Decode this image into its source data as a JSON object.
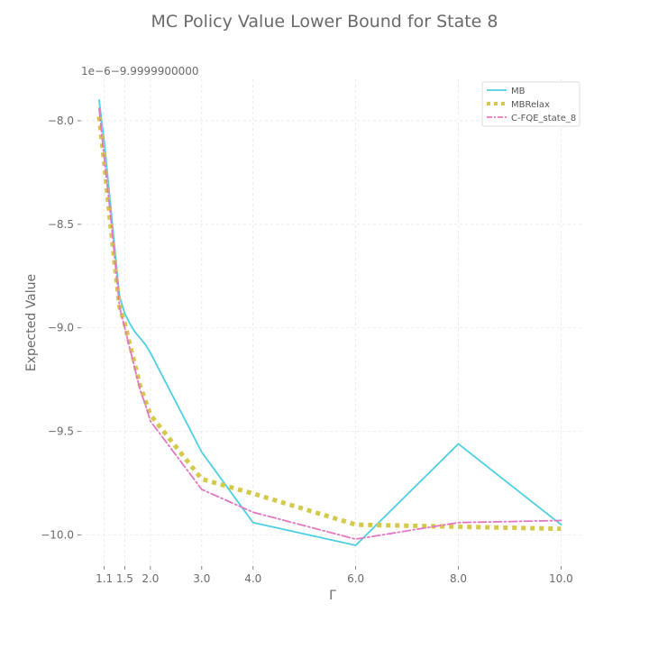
{
  "chart_data": {
    "type": "line",
    "title": "MC Policy Value Lower Bound for State 8",
    "xlabel": "Γ",
    "ylabel": "Expected Value",
    "y_offset_text": "1e−6−9.9999900000",
    "xlim": [
      0.65,
      10.45
    ],
    "ylim": [
      -10.15,
      -7.8
    ],
    "x_ticks": [
      1.1,
      1.5,
      2.0,
      3.0,
      4.0,
      6.0,
      8.0,
      10.0
    ],
    "x_tick_labels": [
      "1.1",
      "1.5",
      "2.0",
      "3.0",
      "4.0",
      "6.0",
      "8.0",
      "10.0"
    ],
    "y_ticks": [
      -8.0,
      -8.5,
      -9.0,
      -9.5,
      -10.0
    ],
    "y_tick_labels": [
      "−8.0",
      "−8.5",
      "−9.0",
      "−9.5",
      "−10.0"
    ],
    "grid": true,
    "legend_position": "top-right",
    "series": [
      {
        "name": "MB",
        "color": "#4dd0e1",
        "style": "solid",
        "x": [
          1.0,
          1.1,
          1.2,
          1.3,
          1.4,
          1.5,
          1.6,
          1.7,
          1.8,
          1.9,
          2.0,
          3.0,
          4.0,
          6.0,
          8.0,
          10.0
        ],
        "y": [
          -7.9,
          -8.1,
          -8.35,
          -8.6,
          -8.85,
          -8.93,
          -8.98,
          -9.02,
          -9.05,
          -9.08,
          -9.12,
          -9.6,
          -9.94,
          -10.05,
          -9.56,
          -9.95
        ]
      },
      {
        "name": "MBRelax",
        "color": "#d4c94a",
        "style": "dotted",
        "x": [
          1.0,
          1.1,
          1.2,
          1.3,
          1.4,
          1.5,
          1.6,
          1.7,
          1.8,
          1.9,
          2.0,
          3.0,
          4.0,
          6.0,
          8.0,
          10.0
        ],
        "y": [
          -7.98,
          -8.2,
          -8.45,
          -8.68,
          -8.9,
          -8.98,
          -9.08,
          -9.18,
          -9.28,
          -9.35,
          -9.42,
          -9.73,
          -9.8,
          -9.95,
          -9.96,
          -9.97
        ]
      },
      {
        "name": "C-FQE_state_8",
        "color": "#e377c2",
        "style": "dashdot",
        "x": [
          1.0,
          1.1,
          1.2,
          1.3,
          1.4,
          1.5,
          1.6,
          1.7,
          1.8,
          1.9,
          2.0,
          3.0,
          4.0,
          6.0,
          8.0,
          10.0
        ],
        "y": [
          -7.94,
          -8.18,
          -8.4,
          -8.65,
          -8.9,
          -9.0,
          -9.1,
          -9.2,
          -9.3,
          -9.37,
          -9.45,
          -9.78,
          -9.89,
          -10.02,
          -9.94,
          -9.93
        ]
      }
    ]
  }
}
